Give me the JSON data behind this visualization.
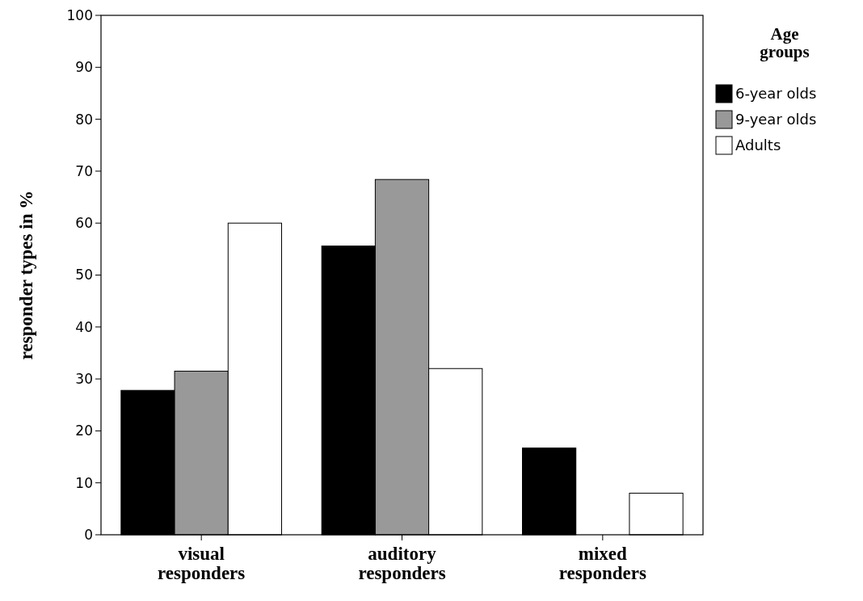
{
  "chart_data": {
    "type": "bar",
    "ylabel": "responder types in %",
    "legend_title": "Age groups",
    "categories": [
      "visual responders",
      "auditory responders",
      "mixed responders"
    ],
    "series": [
      {
        "name": "6-year olds",
        "color": "#000000",
        "values": [
          27.8,
          55.6,
          16.7
        ]
      },
      {
        "name": "9-year olds",
        "color": "#999999",
        "values": [
          31.5,
          68.4,
          0
        ]
      },
      {
        "name": "Adults",
        "color": "#ffffff",
        "values": [
          60,
          32,
          8
        ]
      }
    ],
    "ylim": [
      0,
      100
    ],
    "yticks": [
      0,
      10,
      20,
      30,
      40,
      50,
      60,
      70,
      80,
      90,
      100
    ],
    "legend": "top right",
    "grid": false
  }
}
